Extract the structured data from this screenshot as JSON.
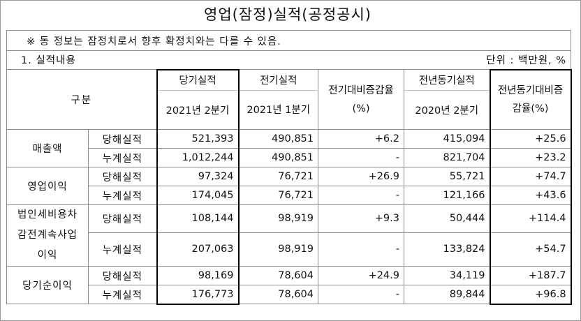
{
  "title": "영업(잠정)실적(공정공시)",
  "notice": "※ 동 정보는 잠정치로서 향후 확정치와는 다를 수 있음.",
  "section": {
    "label": "1. 실적내용",
    "unit": "단위 : 백만원, %"
  },
  "headers": {
    "gubun": "구분",
    "current_top": "당기실적",
    "current_bottom": "2021년  2분기",
    "prev_q": "전기실적",
    "prev_q_period": "2021년 1분기",
    "prev_q_change": "전기대비증감율(%)",
    "prev_y_top": "전년동기실적",
    "prev_y_bottom": "2020년  2분기",
    "prev_y_change": "전년동기대비증감율(%)"
  },
  "rows": [
    {
      "category": "매출액",
      "quarter": {
        "label": "당해실적",
        "current": "521,393",
        "prev_q": "490,851",
        "prev_q_change": "+6.2",
        "prev_y": "415,094",
        "prev_y_change": "+25.6"
      },
      "cumulative": {
        "label": "누계실적",
        "current": "1,012,244",
        "prev_q": "490,851",
        "prev_q_change": "-",
        "prev_y": "821,704",
        "prev_y_change": "+23.2"
      }
    },
    {
      "category": "영업이익",
      "quarter": {
        "label": "당해실적",
        "current": "97,324",
        "prev_q": "76,721",
        "prev_q_change": "+26.9",
        "prev_y": "55,721",
        "prev_y_change": "+74.7"
      },
      "cumulative": {
        "label": "누계실적",
        "current": "174,045",
        "prev_q": "76,721",
        "prev_q_change": "-",
        "prev_y": "121,166",
        "prev_y_change": "+43.6"
      }
    },
    {
      "category": "법인세비용차감전계속사업이익",
      "quarter": {
        "label": "당해실적",
        "current": "108,144",
        "prev_q": "98,919",
        "prev_q_change": "+9.3",
        "prev_y": "50,444",
        "prev_y_change": "+114.4"
      },
      "cumulative": {
        "label": "누계실적",
        "current": "207,063",
        "prev_q": "98,919",
        "prev_q_change": "-",
        "prev_y": "133,824",
        "prev_y_change": "+54.7"
      }
    },
    {
      "category": "당기순이익",
      "quarter": {
        "label": "당해실적",
        "current": "98,169",
        "prev_q": "78,604",
        "prev_q_change": "+24.9",
        "prev_y": "34,119",
        "prev_y_change": "+187.7"
      },
      "cumulative": {
        "label": "누계실적",
        "current": "176,773",
        "prev_q": "78,604",
        "prev_q_change": "-",
        "prev_y": "89,844",
        "prev_y_change": "+96.8"
      }
    }
  ]
}
